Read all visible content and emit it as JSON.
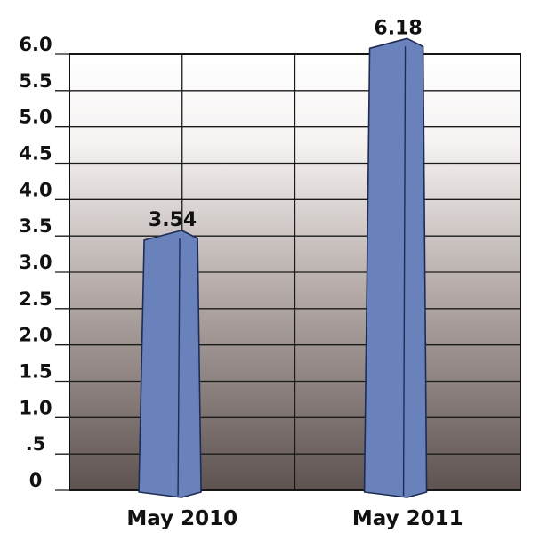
{
  "chart_data": {
    "type": "bar",
    "categories": [
      "May 2010",
      "May 2011"
    ],
    "values": [
      3.54,
      6.18
    ],
    "data_labels": [
      "3.54",
      "6.18"
    ],
    "y_ticks": [
      {
        "value": 0,
        "label": "0"
      },
      {
        "value": 0.5,
        "label": ".5"
      },
      {
        "value": 1.0,
        "label": "1.0"
      },
      {
        "value": 1.5,
        "label": "1.5"
      },
      {
        "value": 2.0,
        "label": "2.0"
      },
      {
        "value": 2.5,
        "label": "2.5"
      },
      {
        "value": 3.0,
        "label": "3.0"
      },
      {
        "value": 3.5,
        "label": "3.5"
      },
      {
        "value": 4.0,
        "label": "4.0"
      },
      {
        "value": 4.5,
        "label": "4.5"
      },
      {
        "value": 5.0,
        "label": "5.0"
      },
      {
        "value": 5.5,
        "label": "5.5"
      },
      {
        "value": 6.0,
        "label": "6.0"
      }
    ],
    "ylim": [
      0,
      6.0
    ],
    "grid": true,
    "legend": "none",
    "colors": {
      "bar_fill": "#6a82bb",
      "bar_stroke": "#1e2c54",
      "bg_top": "#ffffff",
      "bg_bottom": "#5e5350",
      "grid": "#1a1a1a"
    }
  }
}
